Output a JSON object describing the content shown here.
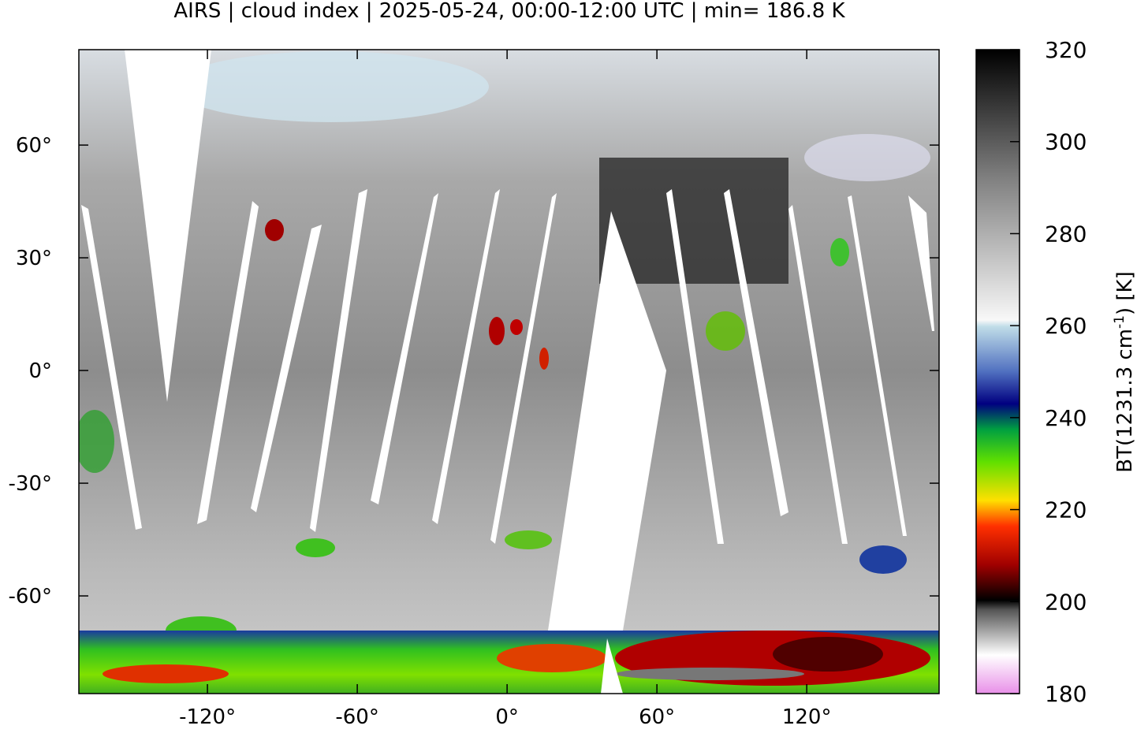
{
  "title": "AIRS | cloud index | 2025-05-24, 00:00-12:00 UTC | min= 186.8 K",
  "map": {
    "xlim": [
      -171.5,
      173
    ],
    "ylim": [
      -86,
      85.4
    ],
    "xticks": [
      {
        "value": -120,
        "label": "-120°"
      },
      {
        "value": -60,
        "label": "-60°"
      },
      {
        "value": 0,
        "label": "0°"
      },
      {
        "value": 60,
        "label": "60°"
      },
      {
        "value": 120,
        "label": "120°"
      }
    ],
    "yticks": [
      {
        "value": -60,
        "label": "-60°"
      },
      {
        "value": -30,
        "label": "-30°"
      },
      {
        "value": 0,
        "label": "0°"
      },
      {
        "value": 30,
        "label": "30°"
      },
      {
        "value": 60,
        "label": "60°"
      }
    ]
  },
  "colorbar": {
    "lim": [
      180,
      320
    ],
    "ticks": [
      180,
      200,
      220,
      240,
      260,
      280,
      300,
      320
    ],
    "label": [
      "BT(1231.3 cm",
      "-1",
      ") [K]"
    ]
  }
}
